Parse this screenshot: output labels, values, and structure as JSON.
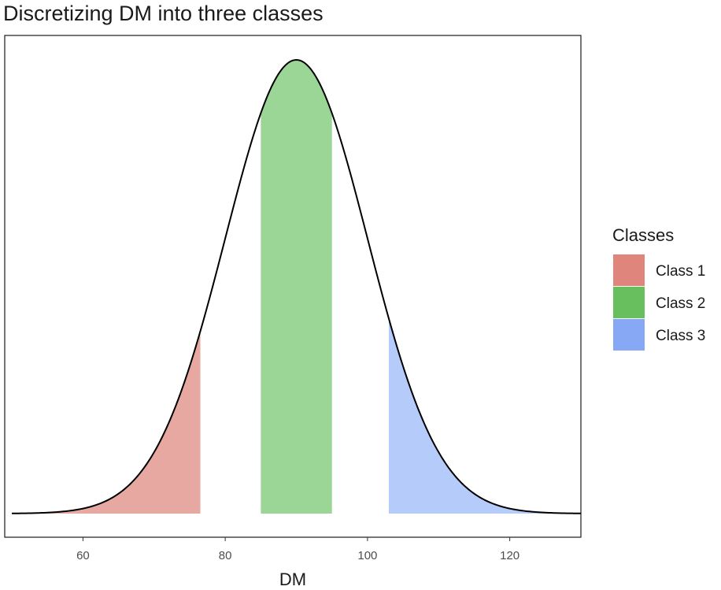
{
  "chart_data": {
    "type": "area",
    "title": "Discretizing DM into three classes",
    "xlabel": "DM",
    "ylabel": "",
    "xlim": [
      49,
      130
    ],
    "x_ticks": [
      60,
      80,
      100,
      120
    ],
    "distribution": {
      "kind": "normal",
      "mean": 90,
      "sd": 10,
      "x_range": [
        50,
        130
      ]
    },
    "grid": false,
    "legend": {
      "title": "Classes",
      "placement": "right",
      "entries": [
        {
          "label": "Class 1",
          "color": "#e0857c"
        },
        {
          "label": "Class 2",
          "color": "#68bf5e"
        },
        {
          "label": "Class 3",
          "color": "#86a8f5"
        }
      ]
    },
    "series": [
      {
        "name": "Class 1",
        "x_range": [
          50,
          76.5
        ],
        "fill": "#e7a8a2"
      },
      {
        "name": "Class 2",
        "x_range": [
          85,
          95
        ],
        "fill": "#9bd696"
      },
      {
        "name": "Class 3",
        "x_range": [
          103,
          130
        ],
        "fill": "#b5cbfa"
      }
    ]
  }
}
